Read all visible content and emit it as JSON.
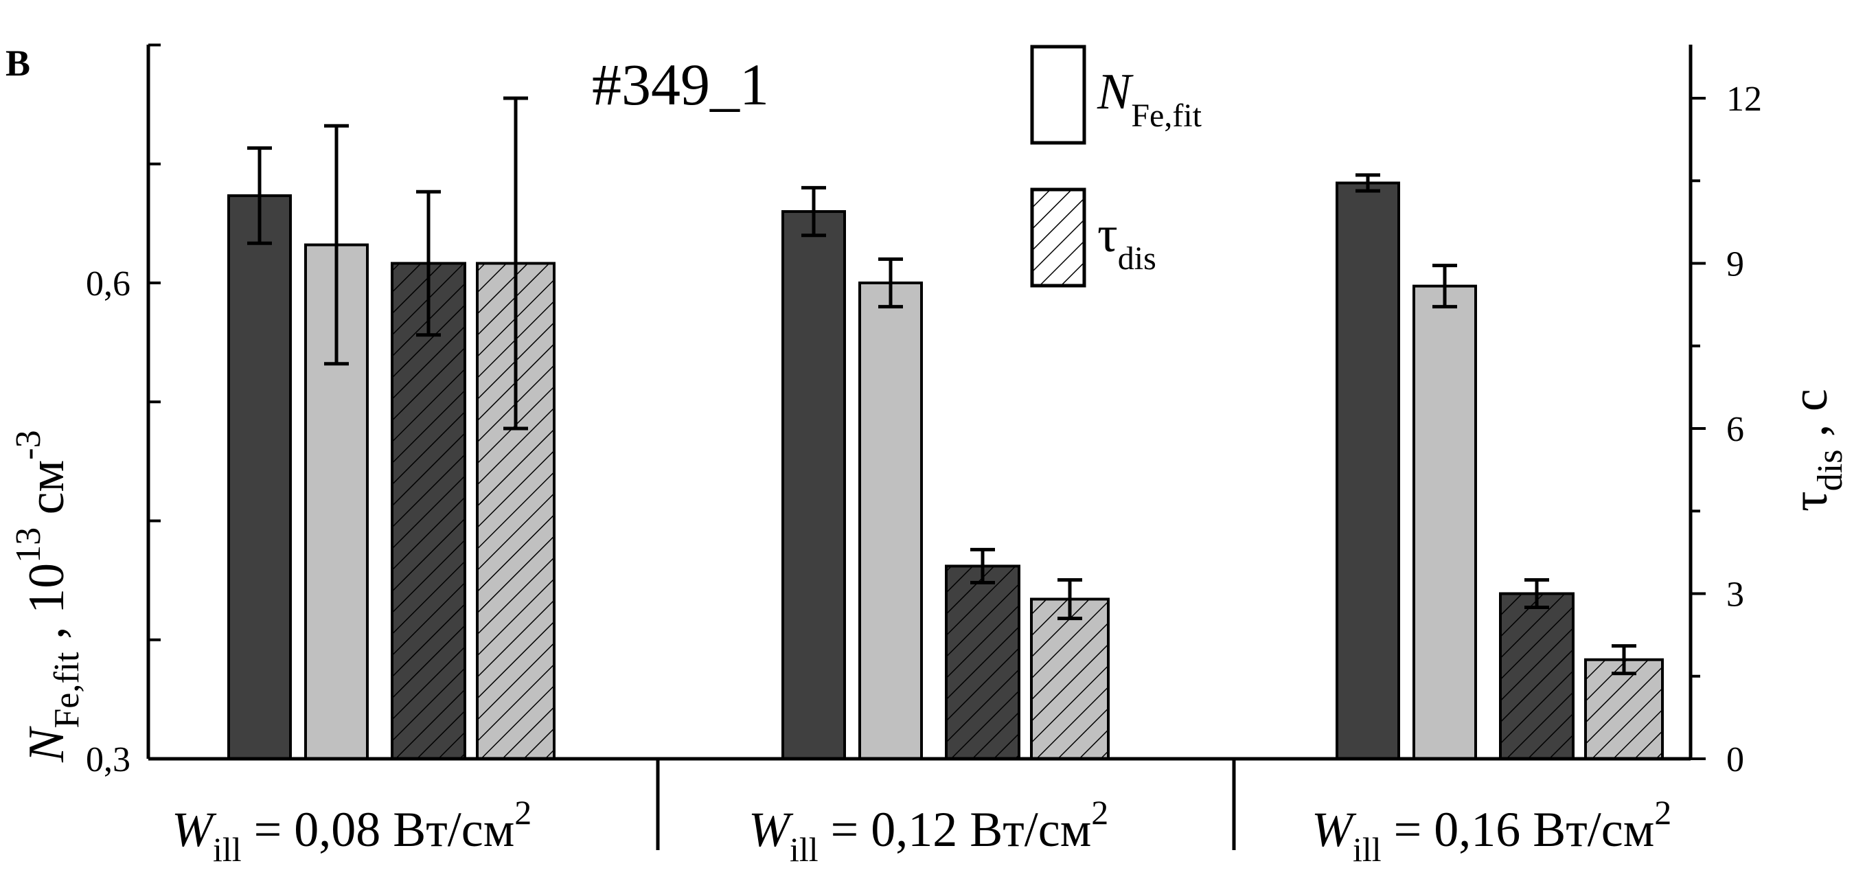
{
  "panel_label": "B",
  "chart_data": {
    "type": "bar",
    "title": "#349_1",
    "categories": [
      {
        "symbol": "W",
        "sub": "ill",
        "text": " = 0,08 Вт/см",
        "sup": "2"
      },
      {
        "symbol": "W",
        "sub": "ill",
        "text": " = 0,12 Вт/см",
        "sup": "2"
      },
      {
        "symbol": "W",
        "sub": "ill",
        "text": " = 0,16 Вт/см",
        "sup": "2"
      }
    ],
    "left_axis": {
      "label": {
        "symbol": "N",
        "sub": "Fe,fit",
        "text": " , 10",
        "sup1": "13",
        "text2": " см",
        "sup2": "-3"
      },
      "ylim": [
        0.3,
        0.75
      ],
      "ticks": [
        "0,3",
        "0,6"
      ],
      "tick_values": [
        0.3,
        0.6
      ]
    },
    "right_axis": {
      "label": {
        "symbol": "τ",
        "sub": "dis",
        "text": " , с"
      },
      "ylim": [
        0,
        13
      ],
      "ticks": [
        "0",
        "3",
        "6",
        "9",
        "12"
      ],
      "tick_values": [
        0,
        3,
        6,
        9,
        12
      ]
    },
    "series": [
      {
        "key": "N_dark",
        "axis": "left",
        "fill": "#404040",
        "hatch": false,
        "values": [
          0.655,
          0.645,
          0.663
        ],
        "errors": [
          0.03,
          0.015,
          0.005
        ]
      },
      {
        "key": "N_light",
        "axis": "left",
        "fill": "#c0c0c0",
        "hatch": false,
        "values": [
          0.624,
          0.6,
          0.598
        ],
        "errors": [
          0.075,
          0.015,
          0.013
        ]
      },
      {
        "key": "tau_dark",
        "axis": "right",
        "fill": "#404040",
        "hatch": true,
        "values": [
          9.0,
          3.5,
          3.0
        ],
        "errors": [
          1.3,
          0.3,
          0.25
        ]
      },
      {
        "key": "tau_light",
        "axis": "right",
        "fill": "#c0c0c0",
        "hatch": true,
        "values": [
          9.0,
          2.9,
          1.8
        ],
        "errors": [
          3.0,
          0.35,
          0.25
        ]
      }
    ],
    "legend": [
      {
        "symbol": "N",
        "sub": "Fe,fit",
        "hatch": false
      },
      {
        "symbol": "τ",
        "sub": "dis",
        "hatch": true
      }
    ],
    "legend_position": "top-center",
    "grid": false
  }
}
